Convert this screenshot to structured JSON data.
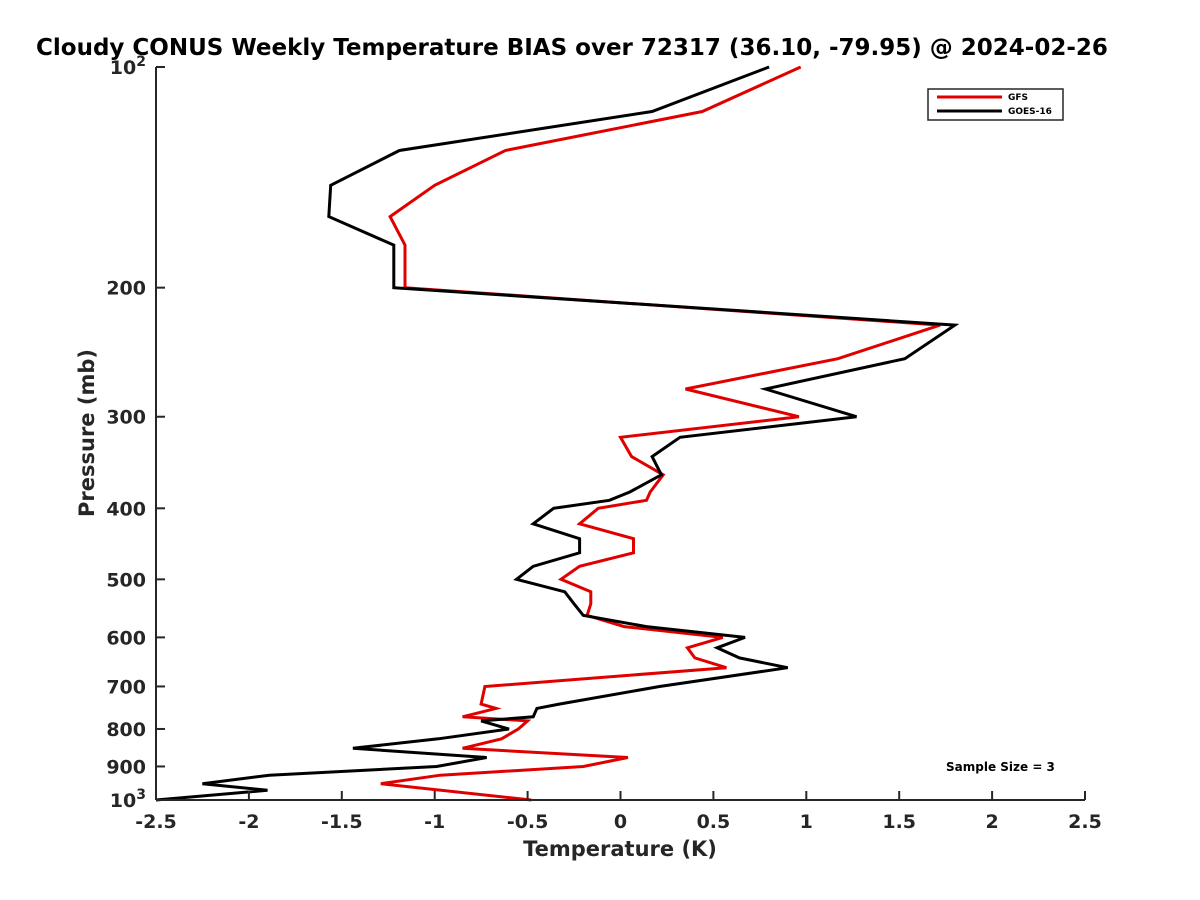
{
  "chart_data": {
    "type": "line",
    "title": "Cloudy CONUS Weekly Temperature BIAS over 72317 (36.10, -79.95) @ 2024-02-26",
    "xlabel": "Temperature (K)",
    "ylabel": "Pressure (mb)",
    "xlim": [
      -2.5,
      2.5
    ],
    "ylim": [
      1000,
      100
    ],
    "y_scale": "log-reversed",
    "x_ticks": [
      "-2.5",
      "-2",
      "-1.5",
      "-1",
      "-0.5",
      "0",
      "0.5",
      "1",
      "1.5",
      "2",
      "2.5"
    ],
    "y_ticks": [
      {
        "value": 100,
        "base": "10",
        "exp": "2"
      },
      {
        "value": 200,
        "label": "200"
      },
      {
        "value": 300,
        "label": "300"
      },
      {
        "value": 400,
        "label": "400"
      },
      {
        "value": 500,
        "label": "500"
      },
      {
        "value": 600,
        "label": "600"
      },
      {
        "value": 700,
        "label": "700"
      },
      {
        "value": 800,
        "label": "800"
      },
      {
        "value": 900,
        "label": "900"
      },
      {
        "value": 1000,
        "base": "10",
        "exp": "3"
      }
    ],
    "legend_position": "top-right",
    "annotation": "Sample Size = 3",
    "series": [
      {
        "name": "GFS",
        "color": "#e00000",
        "points": [
          [
            0.97,
            100
          ],
          [
            0.44,
            115
          ],
          [
            -0.62,
            130
          ],
          [
            -1.0,
            145
          ],
          [
            -1.24,
            160
          ],
          [
            -1.16,
            175
          ],
          [
            -1.16,
            200
          ],
          [
            1.72,
            225
          ],
          [
            1.17,
            250
          ],
          [
            0.35,
            275
          ],
          [
            0.96,
            300
          ],
          [
            0.0,
            320
          ],
          [
            0.06,
            340
          ],
          [
            0.23,
            360
          ],
          [
            0.16,
            380
          ],
          [
            0.14,
            390
          ],
          [
            -0.12,
            400
          ],
          [
            -0.22,
            420
          ],
          [
            0.07,
            440
          ],
          [
            0.07,
            460
          ],
          [
            -0.22,
            480
          ],
          [
            -0.32,
            500
          ],
          [
            -0.16,
            520
          ],
          [
            -0.16,
            540
          ],
          [
            -0.18,
            560
          ],
          [
            0.02,
            580
          ],
          [
            0.55,
            600
          ],
          [
            0.36,
            620
          ],
          [
            0.4,
            640
          ],
          [
            0.57,
            660
          ],
          [
            -0.73,
            700
          ],
          [
            -0.75,
            740
          ],
          [
            -0.67,
            750
          ],
          [
            -0.85,
            770
          ],
          [
            -0.5,
            780
          ],
          [
            -0.55,
            800
          ],
          [
            -0.64,
            825
          ],
          [
            -0.85,
            850
          ],
          [
            0.04,
            875
          ],
          [
            -0.2,
            900
          ],
          [
            -0.97,
            925
          ],
          [
            -1.29,
            950
          ],
          [
            -0.48,
            1000
          ]
        ]
      },
      {
        "name": "GOES-16",
        "color": "#000000",
        "points": [
          [
            0.8,
            100
          ],
          [
            0.17,
            115
          ],
          [
            -1.19,
            130
          ],
          [
            -1.56,
            145
          ],
          [
            -1.57,
            160
          ],
          [
            -1.22,
            175
          ],
          [
            -1.22,
            200
          ],
          [
            1.8,
            225
          ],
          [
            1.53,
            250
          ],
          [
            0.78,
            275
          ],
          [
            1.27,
            300
          ],
          [
            0.32,
            320
          ],
          [
            0.17,
            340
          ],
          [
            0.22,
            360
          ],
          [
            0.05,
            380
          ],
          [
            -0.06,
            390
          ],
          [
            -0.36,
            400
          ],
          [
            -0.47,
            420
          ],
          [
            -0.22,
            440
          ],
          [
            -0.22,
            460
          ],
          [
            -0.47,
            480
          ],
          [
            -0.56,
            500
          ],
          [
            -0.3,
            520
          ],
          [
            -0.25,
            540
          ],
          [
            -0.2,
            560
          ],
          [
            0.14,
            580
          ],
          [
            0.67,
            600
          ],
          [
            0.52,
            620
          ],
          [
            0.64,
            640
          ],
          [
            0.9,
            660
          ],
          [
            0.21,
            700
          ],
          [
            -0.33,
            740
          ],
          [
            -0.45,
            750
          ],
          [
            -0.47,
            770
          ],
          [
            -0.75,
            780
          ],
          [
            -0.6,
            800
          ],
          [
            -0.98,
            825
          ],
          [
            -1.44,
            850
          ],
          [
            -0.72,
            875
          ],
          [
            -0.99,
            900
          ],
          [
            -1.89,
            925
          ],
          [
            -2.25,
            950
          ],
          [
            -1.9,
            970
          ],
          [
            -2.5,
            1000
          ]
        ]
      }
    ]
  }
}
